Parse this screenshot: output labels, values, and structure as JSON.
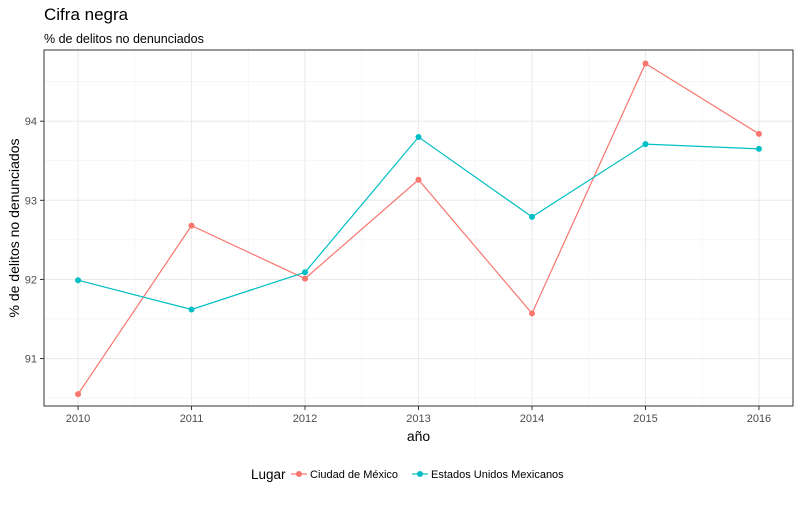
{
  "chart_data": {
    "type": "line",
    "title": "Cifra negra",
    "subtitle": "% de delitos no denunciados",
    "xlabel": "año",
    "ylabel": "% de delitos no denunciados",
    "x": [
      2010,
      2011,
      2012,
      2013,
      2014,
      2015,
      2016
    ],
    "x_tick_labels": [
      "2010",
      "2011",
      "2012",
      "2013",
      "2014",
      "2015",
      "2016"
    ],
    "y_ticks": [
      91,
      92,
      93,
      94
    ],
    "y_tick_labels": [
      "91",
      "92",
      "93",
      "94"
    ],
    "xlim": [
      2009.7,
      2016.3
    ],
    "ylim": [
      90.4,
      94.9
    ],
    "grid": true,
    "legend": {
      "title": "Lugar",
      "position": "bottom"
    },
    "series": [
      {
        "name": "Ciudad de México",
        "color": "#F8766D",
        "values": [
          90.55,
          92.68,
          92.01,
          93.26,
          91.57,
          94.73,
          93.84
        ]
      },
      {
        "name": "Estados Unidos Mexicanos",
        "color": "#00BFC4",
        "values": [
          91.99,
          91.62,
          92.09,
          93.8,
          92.79,
          93.71,
          93.65
        ]
      }
    ]
  }
}
